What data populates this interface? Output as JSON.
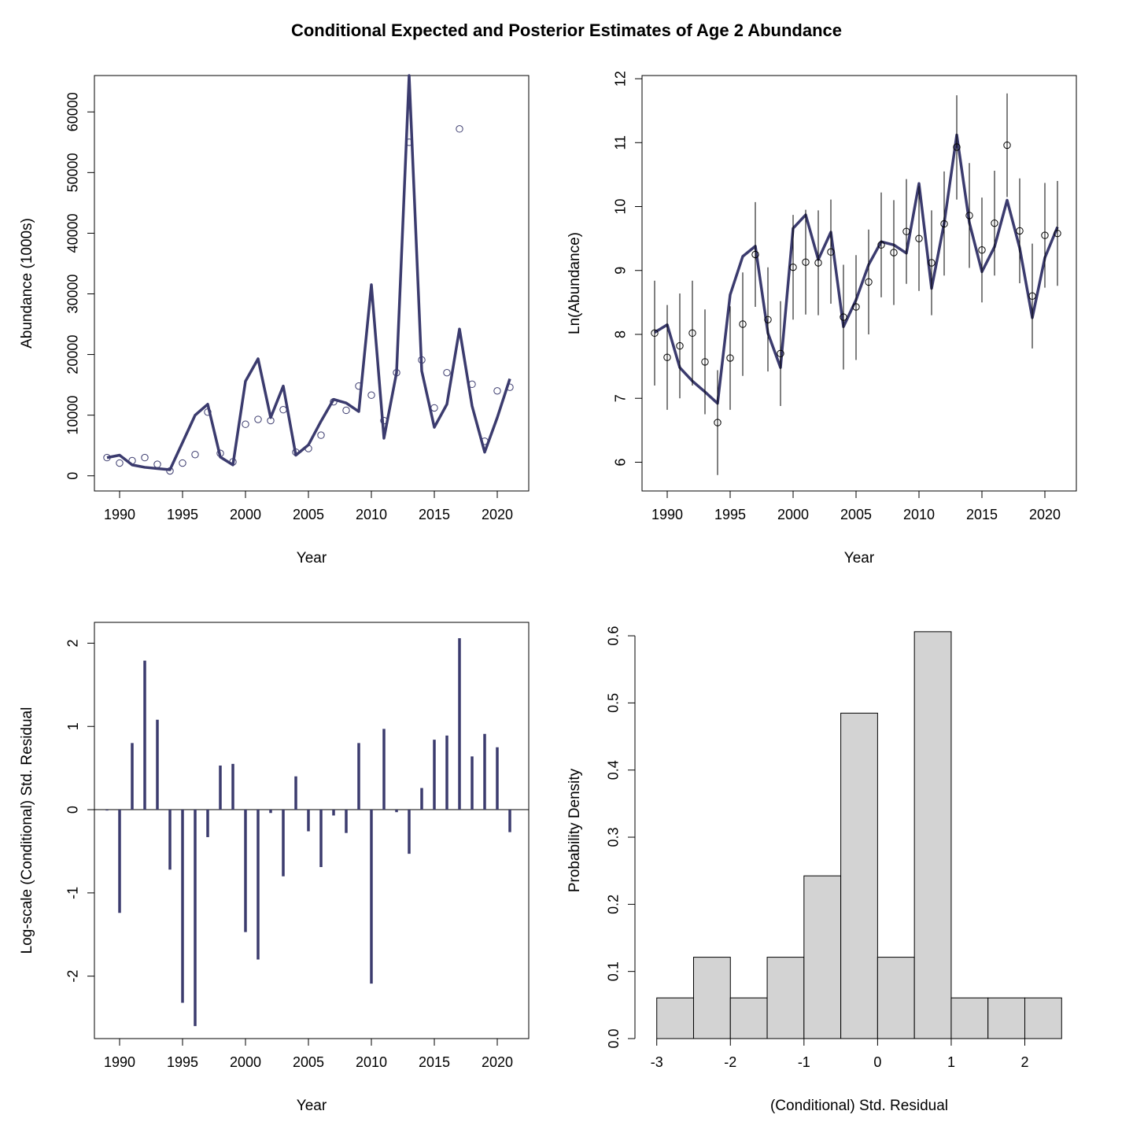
{
  "title": "Conditional Expected and Posterior Estimates of Age 2 Abundance",
  "colors": {
    "series": "#3B3B6E",
    "hist_fill": "#D3D3D3",
    "axis": "#000000"
  },
  "chart_data": [
    {
      "id": "abundance",
      "type": "line",
      "xlabel": "Year",
      "ylabel": "Abundance (1000s)",
      "xlim": [
        1988,
        2022.5
      ],
      "ylim": [
        -2500,
        66000
      ],
      "xticks": [
        1990,
        1995,
        2000,
        2005,
        2010,
        2015,
        2020
      ],
      "yticks": [
        0,
        10000,
        20000,
        30000,
        40000,
        50000,
        60000
      ],
      "x": [
        1989,
        1990,
        1991,
        1992,
        1993,
        1994,
        1995,
        1996,
        1997,
        1998,
        1999,
        2000,
        2001,
        2002,
        2003,
        2004,
        2005,
        2006,
        2007,
        2008,
        2009,
        2010,
        2011,
        2012,
        2013,
        2014,
        2015,
        2016,
        2017,
        2018,
        2019,
        2020,
        2021
      ],
      "series": [
        {
          "name": "Expected",
          "style": "line",
          "values": [
            3000,
            3400,
            1800,
            1400,
            1200,
            1000,
            5500,
            10000,
            11800,
            3100,
            1800,
            15600,
            19300,
            9600,
            14800,
            3400,
            5100,
            9000,
            12600,
            12000,
            10600,
            31500,
            6200,
            17000,
            66000,
            17300,
            8000,
            11800,
            24200,
            11500,
            3900,
            9600,
            16000
          ]
        },
        {
          "name": "Posterior",
          "style": "points",
          "values": [
            3000,
            2100,
            2500,
            3000,
            1900,
            800,
            2100,
            3500,
            10500,
            3700,
            2300,
            8500,
            9300,
            9100,
            10900,
            3900,
            4500,
            6700,
            12200,
            10800,
            14800,
            13300,
            9100,
            17000,
            55000,
            19100,
            11200,
            17000,
            57200,
            15100,
            5700,
            14000,
            14600
          ]
        }
      ]
    },
    {
      "id": "log_abundance",
      "type": "line",
      "xlabel": "Year",
      "ylabel": "Ln(Abundance)",
      "xlim": [
        1988,
        2022.5
      ],
      "ylim": [
        5.55,
        12.05
      ],
      "xticks": [
        1990,
        1995,
        2000,
        2005,
        2010,
        2015,
        2020
      ],
      "yticks": [
        6,
        7,
        8,
        9,
        10,
        11,
        12
      ],
      "x": [
        1989,
        1990,
        1991,
        1992,
        1993,
        1994,
        1995,
        1996,
        1997,
        1998,
        1999,
        2000,
        2001,
        2002,
        2003,
        2004,
        2005,
        2006,
        2007,
        2008,
        2009,
        2010,
        2011,
        2012,
        2013,
        2014,
        2015,
        2016,
        2017,
        2018,
        2019,
        2020,
        2021
      ],
      "series": [
        {
          "name": "Expected",
          "style": "line",
          "values": [
            8.03,
            8.15,
            7.48,
            7.27,
            7.1,
            6.92,
            8.62,
            9.22,
            9.38,
            8.02,
            7.48,
            9.66,
            9.87,
            9.17,
            9.6,
            8.12,
            8.54,
            9.09,
            9.45,
            9.4,
            9.27,
            10.36,
            8.72,
            9.74,
            11.12,
            9.75,
            8.98,
            9.37,
            10.1,
            9.35,
            8.26,
            9.2,
            9.68
          ]
        },
        {
          "name": "Posterior",
          "style": "points_with_intervals",
          "values": [
            8.02,
            7.64,
            7.82,
            8.02,
            7.57,
            6.62,
            7.63,
            8.16,
            9.25,
            8.23,
            7.7,
            9.05,
            9.13,
            9.12,
            9.29,
            8.27,
            8.43,
            8.82,
            9.4,
            9.28,
            9.61,
            9.5,
            9.12,
            9.73,
            10.93,
            9.86,
            9.32,
            9.74,
            10.96,
            9.62,
            8.6,
            9.55,
            9.58
          ],
          "lower": [
            7.2,
            6.82,
            7.0,
            7.2,
            6.75,
            5.8,
            6.82,
            7.35,
            8.43,
            7.42,
            6.88,
            8.23,
            8.31,
            8.3,
            8.48,
            7.45,
            7.6,
            8.0,
            8.58,
            8.46,
            8.79,
            8.68,
            8.3,
            8.92,
            10.11,
            9.04,
            8.5,
            8.92,
            10.15,
            8.8,
            7.78,
            8.73,
            8.76
          ],
          "upper": [
            8.84,
            8.46,
            8.64,
            8.84,
            8.39,
            7.44,
            8.44,
            8.97,
            10.07,
            9.05,
            8.52,
            9.87,
            9.95,
            9.94,
            10.11,
            9.09,
            9.24,
            9.64,
            10.22,
            10.1,
            10.43,
            10.32,
            9.94,
            10.55,
            11.74,
            10.68,
            10.14,
            10.56,
            11.77,
            10.44,
            9.42,
            10.37,
            10.4
          ]
        }
      ]
    },
    {
      "id": "residuals",
      "type": "bar",
      "subtype": "needle",
      "xlabel": "Year",
      "ylabel": "Log-scale (Conditional) Std. Residual",
      "xlim": [
        1988,
        2022.5
      ],
      "ylim": [
        -2.75,
        2.25
      ],
      "xticks": [
        1990,
        1995,
        2000,
        2005,
        2010,
        2015,
        2020
      ],
      "yticks": [
        -2,
        -1,
        0,
        1,
        2
      ],
      "x": [
        1989,
        1990,
        1991,
        1992,
        1993,
        1994,
        1995,
        1996,
        1997,
        1998,
        1999,
        2000,
        2001,
        2002,
        2003,
        2004,
        2005,
        2006,
        2007,
        2008,
        2009,
        2010,
        2011,
        2012,
        2013,
        2014,
        2015,
        2016,
        2017,
        2018,
        2019,
        2020,
        2021
      ],
      "values": [
        -0.01,
        -1.24,
        0.8,
        1.79,
        1.08,
        -0.72,
        -2.32,
        -2.6,
        -0.33,
        0.53,
        0.55,
        -1.47,
        -1.8,
        -0.04,
        -0.8,
        0.4,
        -0.26,
        -0.69,
        -0.07,
        -0.28,
        0.8,
        -2.09,
        0.97,
        -0.03,
        -0.53,
        0.26,
        0.84,
        0.89,
        2.06,
        0.64,
        0.91,
        0.75,
        -0.27
      ]
    },
    {
      "id": "histogram",
      "type": "bar",
      "subtype": "histogram",
      "xlabel": "(Conditional) Std. Residual",
      "ylabel": "Probability Density",
      "xlim": [
        -3.2,
        2.7
      ],
      "ylim": [
        0,
        0.62
      ],
      "xticks": [
        -3,
        -2,
        -1,
        0,
        1,
        2
      ],
      "yticks": [
        0.0,
        0.1,
        0.2,
        0.3,
        0.4,
        0.5,
        0.6
      ],
      "bin_edges": [
        -3.0,
        -2.5,
        -2.0,
        -1.5,
        -1.0,
        -0.5,
        0.0,
        0.5,
        1.0,
        1.5,
        2.0,
        2.5
      ],
      "values": [
        0.0606,
        0.1212,
        0.0606,
        0.1212,
        0.2424,
        0.4848,
        0.1212,
        0.6061,
        0.0606,
        0.0606,
        0.0606
      ]
    }
  ]
}
